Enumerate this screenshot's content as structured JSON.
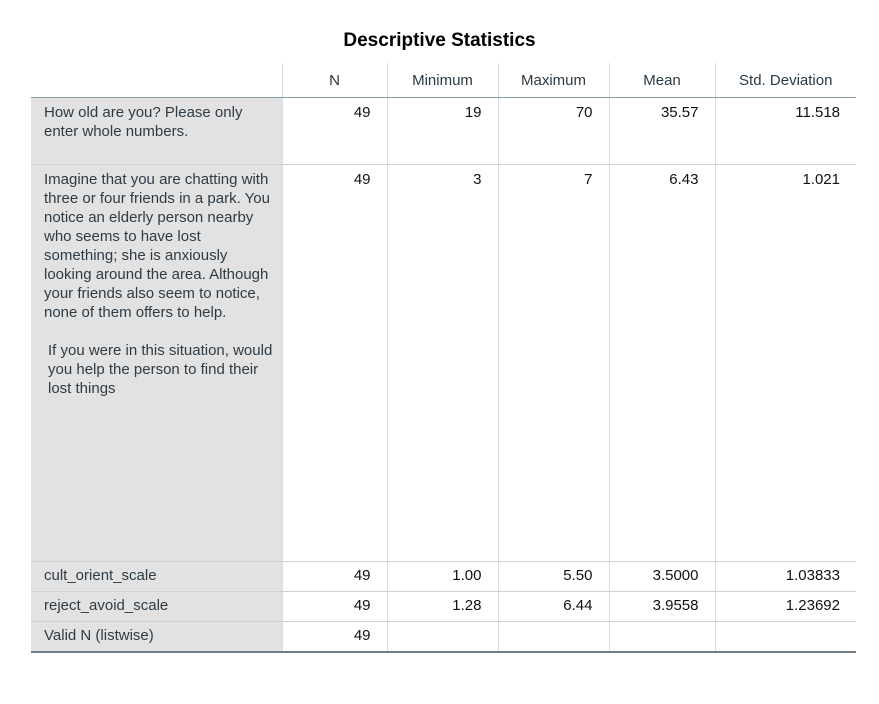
{
  "title": "Descriptive Statistics",
  "columns": {
    "n": "N",
    "minimum": "Minimum",
    "maximum": "Maximum",
    "mean": "Mean",
    "std": "Std. Deviation"
  },
  "rows": [
    {
      "label": "How old are you? Please only enter whole numbers.",
      "n": "49",
      "minimum": "19",
      "maximum": "70",
      "mean": "35.57",
      "std": "11.518"
    },
    {
      "label": "Imagine that you are chatting with three or four friends in a park. You notice an elderly person nearby who seems to have lost something; she is anxiously looking around the area. Although your friends also seem to notice, none of them offers to help.",
      "label2": "If you were in this situation, would you help the person to find their lost things",
      "n": "49",
      "minimum": "3",
      "maximum": "7",
      "mean": "6.43",
      "std": "1.021"
    },
    {
      "label": "cult_orient_scale",
      "n": "49",
      "minimum": "1.00",
      "maximum": "5.50",
      "mean": "3.5000",
      "std": "1.03833"
    },
    {
      "label": "reject_avoid_scale",
      "n": "49",
      "minimum": "1.28",
      "maximum": "6.44",
      "mean": "3.9558",
      "std": "1.23692"
    },
    {
      "label": "Valid N (listwise)",
      "n": "49",
      "minimum": "",
      "maximum": "",
      "mean": "",
      "std": ""
    }
  ]
}
